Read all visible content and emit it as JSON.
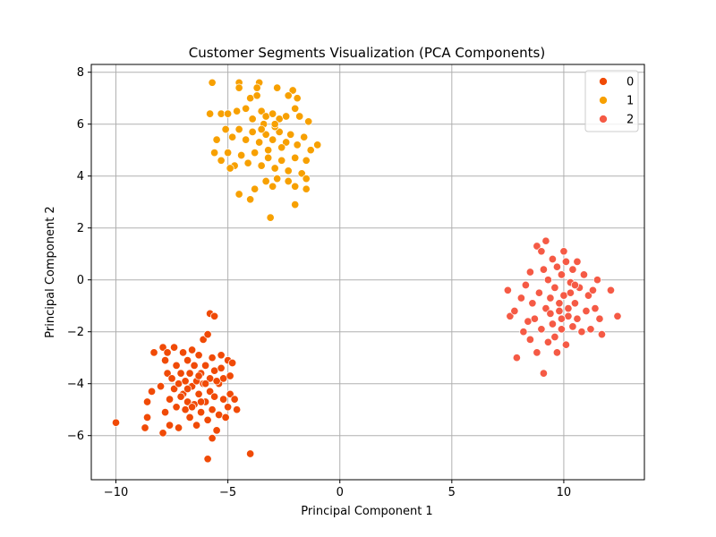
{
  "chart_data": {
    "type": "scatter",
    "title": "Customer Segments Visualization (PCA Components)",
    "xlabel": "Principal Component 1",
    "ylabel": "Principal Component 2",
    "xlim": [
      -11.1,
      13.6
    ],
    "ylim": [
      -7.7,
      8.3
    ],
    "xticks": [
      -10,
      -5,
      0,
      5,
      10
    ],
    "yticks": [
      -6,
      -4,
      -2,
      0,
      2,
      4,
      6,
      8
    ],
    "grid": true,
    "legend_position": "top-right",
    "series": [
      {
        "name": "0",
        "color": "#f04a06",
        "points": [
          [
            -10.0,
            -5.5
          ],
          [
            -8.7,
            -5.7
          ],
          [
            -8.6,
            -5.3
          ],
          [
            -8.6,
            -4.7
          ],
          [
            -8.4,
            -4.3
          ],
          [
            -8.3,
            -2.8
          ],
          [
            -8.0,
            -4.1
          ],
          [
            -7.9,
            -2.6
          ],
          [
            -7.9,
            -5.9
          ],
          [
            -7.8,
            -5.1
          ],
          [
            -7.8,
            -3.1
          ],
          [
            -7.7,
            -3.6
          ],
          [
            -7.7,
            -2.8
          ],
          [
            -7.6,
            -4.6
          ],
          [
            -7.6,
            -5.6
          ],
          [
            -7.5,
            -3.8
          ],
          [
            -7.4,
            -2.6
          ],
          [
            -7.4,
            -4.2
          ],
          [
            -7.3,
            -3.3
          ],
          [
            -7.3,
            -4.9
          ],
          [
            -7.2,
            -5.7
          ],
          [
            -7.2,
            -4.0
          ],
          [
            -7.1,
            -3.6
          ],
          [
            -7.0,
            -4.4
          ],
          [
            -7.0,
            -2.8
          ],
          [
            -6.9,
            -3.9
          ],
          [
            -6.9,
            -5.0
          ],
          [
            -6.8,
            -3.1
          ],
          [
            -6.8,
            -4.7
          ],
          [
            -6.7,
            -3.6
          ],
          [
            -6.7,
            -5.3
          ],
          [
            -6.6,
            -2.7
          ],
          [
            -6.6,
            -4.1
          ],
          [
            -6.5,
            -3.3
          ],
          [
            -6.5,
            -4.8
          ],
          [
            -6.4,
            -5.6
          ],
          [
            -6.4,
            -3.9
          ],
          [
            -6.3,
            -2.9
          ],
          [
            -6.3,
            -4.4
          ],
          [
            -6.2,
            -3.6
          ],
          [
            -6.2,
            -5.1
          ],
          [
            -6.1,
            -4.0
          ],
          [
            -6.1,
            -2.3
          ],
          [
            -6.0,
            -3.3
          ],
          [
            -6.0,
            -4.7
          ],
          [
            -5.9,
            -2.1
          ],
          [
            -5.9,
            -5.4
          ],
          [
            -5.9,
            -6.9
          ],
          [
            -5.8,
            -3.8
          ],
          [
            -5.8,
            -4.3
          ],
          [
            -5.8,
            -1.3
          ],
          [
            -5.7,
            -3.0
          ],
          [
            -5.7,
            -5.0
          ],
          [
            -5.7,
            -6.1
          ],
          [
            -5.6,
            -1.4
          ],
          [
            -5.6,
            -4.5
          ],
          [
            -5.6,
            -3.5
          ],
          [
            -5.5,
            -5.8
          ],
          [
            -5.4,
            -4.0
          ],
          [
            -5.4,
            -5.2
          ],
          [
            -5.3,
            -3.4
          ],
          [
            -5.3,
            -2.9
          ],
          [
            -5.2,
            -4.6
          ],
          [
            -5.2,
            -3.8
          ],
          [
            -5.1,
            -5.3
          ],
          [
            -5.0,
            -3.1
          ],
          [
            -5.0,
            -4.9
          ],
          [
            -4.9,
            -3.7
          ],
          [
            -4.9,
            -4.4
          ],
          [
            -4.8,
            -3.2
          ],
          [
            -4.6,
            -5.0
          ],
          [
            -4.7,
            -4.6
          ],
          [
            -4.0,
            -6.7
          ],
          [
            -6.6,
            -4.9
          ],
          [
            -7.1,
            -4.5
          ],
          [
            -6.3,
            -3.7
          ],
          [
            -6.0,
            -4.0
          ],
          [
            -6.8,
            -4.2
          ],
          [
            -5.5,
            -3.9
          ],
          [
            -6.2,
            -4.7
          ]
        ]
      },
      {
        "name": "1",
        "color": "#f7a000",
        "points": [
          [
            -5.7,
            7.6
          ],
          [
            -4.5,
            7.6
          ],
          [
            -4.5,
            7.4
          ],
          [
            -3.6,
            7.6
          ],
          [
            -3.7,
            7.4
          ],
          [
            -2.8,
            7.4
          ],
          [
            -4.0,
            7.0
          ],
          [
            -3.7,
            7.1
          ],
          [
            -2.1,
            7.3
          ],
          [
            -1.9,
            7.0
          ],
          [
            -2.3,
            7.1
          ],
          [
            -5.8,
            6.4
          ],
          [
            -5.3,
            6.4
          ],
          [
            -5.0,
            6.4
          ],
          [
            -4.6,
            6.5
          ],
          [
            -4.2,
            6.6
          ],
          [
            -3.9,
            6.2
          ],
          [
            -3.5,
            6.5
          ],
          [
            -3.3,
            6.3
          ],
          [
            -3.0,
            6.4
          ],
          [
            -2.7,
            6.2
          ],
          [
            -2.4,
            6.3
          ],
          [
            -2.0,
            6.6
          ],
          [
            -1.8,
            6.3
          ],
          [
            -1.4,
            6.1
          ],
          [
            -5.5,
            5.4
          ],
          [
            -5.1,
            5.8
          ],
          [
            -4.8,
            5.5
          ],
          [
            -4.5,
            5.8
          ],
          [
            -4.2,
            5.4
          ],
          [
            -3.9,
            5.7
          ],
          [
            -3.6,
            5.3
          ],
          [
            -3.3,
            5.6
          ],
          [
            -3.0,
            5.4
          ],
          [
            -2.7,
            5.7
          ],
          [
            -2.4,
            5.3
          ],
          [
            -2.2,
            5.6
          ],
          [
            -1.9,
            5.2
          ],
          [
            -1.6,
            5.5
          ],
          [
            -1.3,
            5.0
          ],
          [
            -1.0,
            5.2
          ],
          [
            -5.6,
            4.9
          ],
          [
            -5.3,
            4.6
          ],
          [
            -5.0,
            4.9
          ],
          [
            -4.7,
            4.4
          ],
          [
            -4.4,
            4.8
          ],
          [
            -4.1,
            4.5
          ],
          [
            -3.8,
            4.9
          ],
          [
            -3.5,
            4.4
          ],
          [
            -3.2,
            4.7
          ],
          [
            -2.9,
            4.3
          ],
          [
            -2.6,
            4.6
          ],
          [
            -2.3,
            4.2
          ],
          [
            -2.0,
            4.7
          ],
          [
            -1.7,
            4.1
          ],
          [
            -1.5,
            4.6
          ],
          [
            -4.5,
            3.3
          ],
          [
            -4.0,
            3.1
          ],
          [
            -3.8,
            3.5
          ],
          [
            -3.3,
            3.8
          ],
          [
            -3.0,
            3.6
          ],
          [
            -2.8,
            3.9
          ],
          [
            -2.3,
            3.8
          ],
          [
            -2.0,
            3.6
          ],
          [
            -1.5,
            3.5
          ],
          [
            -1.5,
            3.9
          ],
          [
            -2.0,
            2.9
          ],
          [
            -3.1,
            2.4
          ],
          [
            -4.9,
            4.3
          ],
          [
            -3.4,
            6.0
          ],
          [
            -2.9,
            5.9
          ],
          [
            -3.2,
            5.0
          ],
          [
            -2.6,
            5.1
          ],
          [
            -3.5,
            5.8
          ],
          [
            -2.9,
            6.0
          ]
        ]
      },
      {
        "name": "2",
        "color": "#f55a45",
        "points": [
          [
            7.5,
            -0.4
          ],
          [
            7.6,
            -1.4
          ],
          [
            7.8,
            -1.2
          ],
          [
            7.9,
            -3.0
          ],
          [
            8.1,
            -0.7
          ],
          [
            8.2,
            -2.0
          ],
          [
            8.3,
            -0.2
          ],
          [
            8.4,
            -1.6
          ],
          [
            8.5,
            0.3
          ],
          [
            8.5,
            -2.3
          ],
          [
            8.6,
            -0.9
          ],
          [
            8.7,
            -1.5
          ],
          [
            8.8,
            1.3
          ],
          [
            8.8,
            -2.8
          ],
          [
            8.9,
            -0.5
          ],
          [
            9.0,
            -1.9
          ],
          [
            9.0,
            1.1
          ],
          [
            9.1,
            0.4
          ],
          [
            9.1,
            -3.6
          ],
          [
            9.2,
            1.5
          ],
          [
            9.2,
            -1.1
          ],
          [
            9.3,
            -2.4
          ],
          [
            9.3,
            0.0
          ],
          [
            9.4,
            -0.7
          ],
          [
            9.5,
            -1.7
          ],
          [
            9.5,
            0.8
          ],
          [
            9.6,
            -2.2
          ],
          [
            9.6,
            -0.3
          ],
          [
            9.7,
            0.5
          ],
          [
            9.7,
            -2.8
          ],
          [
            9.8,
            -1.2
          ],
          [
            9.9,
            0.2
          ],
          [
            9.9,
            -1.9
          ],
          [
            10.0,
            1.1
          ],
          [
            10.0,
            -0.6
          ],
          [
            10.1,
            -2.5
          ],
          [
            10.1,
            0.7
          ],
          [
            10.2,
            -1.4
          ],
          [
            10.3,
            -0.1
          ],
          [
            10.4,
            -1.8
          ],
          [
            10.4,
            0.4
          ],
          [
            10.5,
            -0.9
          ],
          [
            10.6,
            0.7
          ],
          [
            10.6,
            -1.5
          ],
          [
            10.7,
            -0.3
          ],
          [
            10.8,
            -2.0
          ],
          [
            10.9,
            0.2
          ],
          [
            11.0,
            -1.2
          ],
          [
            11.1,
            -0.6
          ],
          [
            11.2,
            -1.9
          ],
          [
            11.3,
            -0.4
          ],
          [
            11.4,
            -1.1
          ],
          [
            11.5,
            0.0
          ],
          [
            11.6,
            -1.5
          ],
          [
            11.7,
            -2.1
          ],
          [
            12.1,
            -0.4
          ],
          [
            12.4,
            -1.4
          ],
          [
            10.3,
            -0.5
          ],
          [
            9.8,
            -0.9
          ],
          [
            10.2,
            -1.1
          ],
          [
            9.4,
            -1.3
          ],
          [
            10.5,
            -0.2
          ],
          [
            9.9,
            -1.5
          ]
        ]
      }
    ]
  }
}
